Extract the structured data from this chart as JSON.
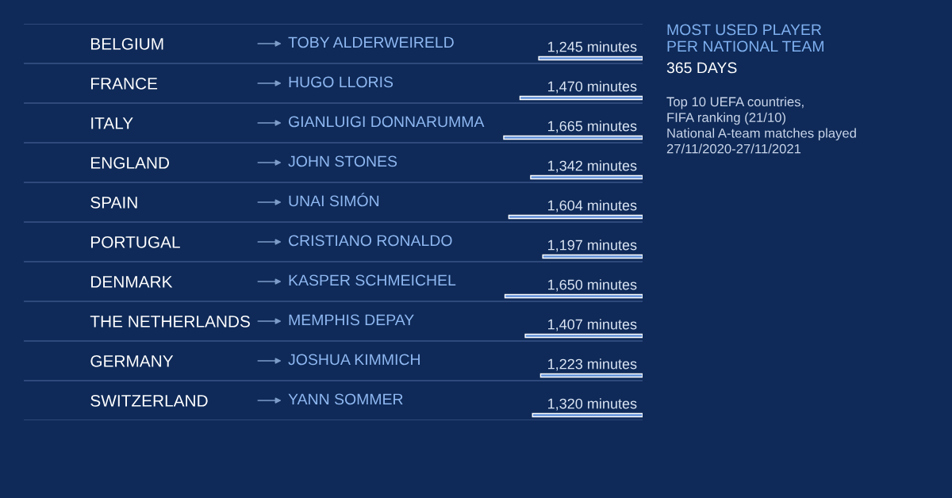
{
  "chart_data": {
    "type": "bar",
    "orientation": "horizontal",
    "title": "MOST USED PLAYER\nPER NATIONAL TEAM",
    "subtitle": "365 DAYS",
    "categories": [
      "BELGIUM",
      "FRANCE",
      "ITALY",
      "ENGLAND",
      "SPAIN",
      "PORTUGAL",
      "DENMARK",
      "THE NETHERLANDS",
      "GERMANY",
      "SWITZERLAND"
    ],
    "values": [
      1245,
      1470,
      1665,
      1342,
      1604,
      1197,
      1650,
      1407,
      1223,
      1320
    ],
    "value_labels": [
      "1,245 minutes",
      "1,470 minutes",
      "1,665 minutes",
      "1,342 minutes",
      "1,604 minutes",
      "1,197 minutes",
      "1,650 minutes",
      "1,407 minutes",
      "1,223 minutes",
      "1,320 minutes"
    ],
    "color": "#5f8fd8",
    "xlim": [
      7420,
      0
    ],
    "tick_labels": "y",
    "grid": "y",
    "annotations": [
      "TOBY ALDERWEIRELD",
      "HUGO LLORIS",
      "GIANLUIGI DONNARUMMA",
      "JOHN STONES",
      "UNAI SIMÓN",
      "CRISTIANO RONALDO",
      "KASPER SCHMEICHEL",
      "MEMPHIS DEPAY",
      "JOSHUA KIMMICH",
      "YANN SOMMER",
      "Top 10 UEFA countries,\nFIFA ranking (21/10)\nNational A-team matches played\n27/11/2020-27/11/2021"
    ]
  }
}
